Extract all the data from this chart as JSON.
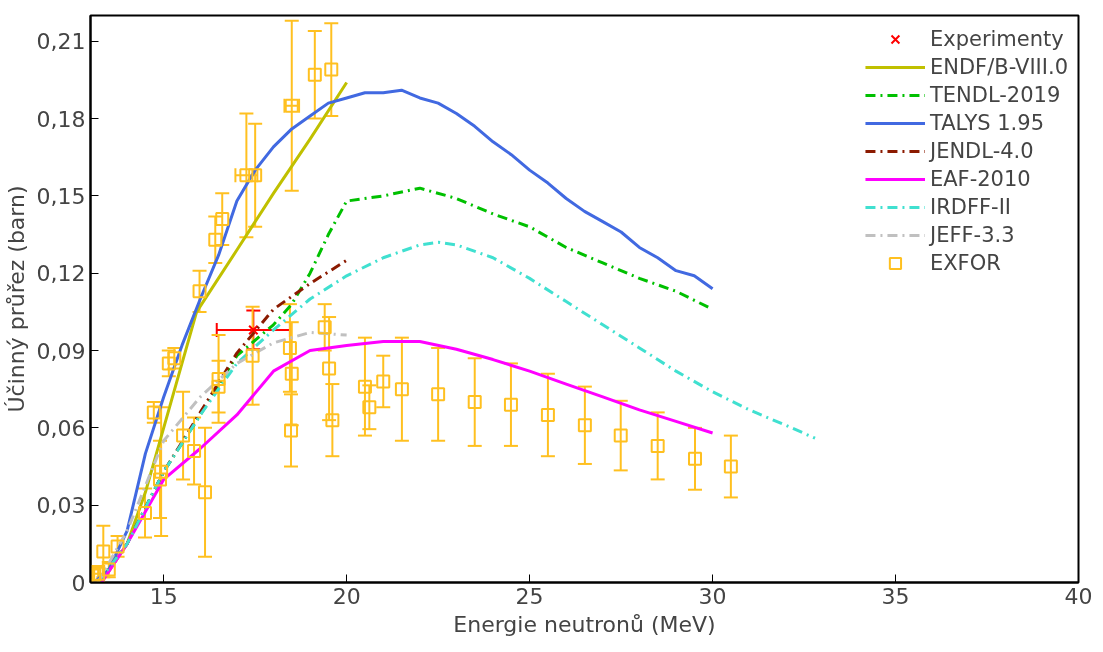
{
  "chart_data": {
    "type": "line",
    "xlabel": "Energie neutronů (MeV)",
    "ylabel": "Účinný průřez (barn)",
    "xlim": [
      13,
      40
    ],
    "xticks": [
      15,
      20,
      25,
      30,
      35,
      40
    ],
    "ylim": [
      0,
      0.22
    ],
    "yticks": [
      0,
      {
        "value": 0.03,
        "label": "0,03"
      },
      {
        "value": 0.06,
        "label": "0,06"
      },
      {
        "value": 0.09,
        "label": "0,09"
      },
      {
        "value": 0.12,
        "label": "0,12"
      },
      {
        "value": 0.15,
        "label": "0,15"
      },
      {
        "value": 0.18,
        "label": "0,18"
      },
      {
        "value": 0.21,
        "label": "0,21"
      }
    ],
    "grid": false,
    "legend": "top right",
    "series": [
      {
        "name": "Experimenty",
        "type": "scatter",
        "marker": "cross",
        "color": "#ff0000",
        "x": [
          17.45
        ],
        "values": [
          0.098
        ],
        "errors": [
          0.0075
        ],
        "xerrors": [
          1.0
        ]
      },
      {
        "name": "ENDF/B-VIII.0",
        "line_style": "solid",
        "color": "#c0c000",
        "x": [
          13.3,
          14,
          14.5,
          15,
          15.5,
          15.9,
          17,
          18,
          19,
          20
        ],
        "values": [
          0.0,
          0.015,
          0.035,
          0.06,
          0.085,
          0.105,
          0.129,
          0.151,
          0.172,
          0.194
        ]
      },
      {
        "name": "TENDL-2019",
        "line_style": "dashed",
        "color": "#00c000",
        "x": [
          13.2,
          14,
          15,
          16,
          17,
          18,
          18.5,
          19,
          19.5,
          20,
          21,
          22,
          23,
          24,
          25,
          26,
          27,
          28,
          29,
          30
        ],
        "values": [
          0.0,
          0.015,
          0.043,
          0.065,
          0.088,
          0.1,
          0.108,
          0.12,
          0.135,
          0.148,
          0.15,
          0.153,
          0.149,
          0.143,
          0.138,
          0.13,
          0.124,
          0.118,
          0.113,
          0.106
        ]
      },
      {
        "name": "TALYS 1.95",
        "line_style": "solid",
        "color": "#4169e1",
        "x": [
          13.1,
          13.5,
          14,
          14.5,
          15,
          15.5,
          16,
          16.5,
          17,
          17.5,
          18,
          18.5,
          19,
          19.5,
          20,
          20.5,
          21,
          21.5,
          22,
          22.5,
          23,
          23.5,
          24,
          24.5,
          25,
          25.5,
          26,
          26.5,
          27,
          27.5,
          28,
          28.5,
          29,
          29.5,
          30
        ],
        "values": [
          0.0,
          0.005,
          0.02,
          0.05,
          0.072,
          0.092,
          0.11,
          0.127,
          0.148,
          0.16,
          0.169,
          0.176,
          0.181,
          0.186,
          0.188,
          0.19,
          0.19,
          0.191,
          0.188,
          0.186,
          0.182,
          0.177,
          0.171,
          0.166,
          0.16,
          0.155,
          0.149,
          0.144,
          0.14,
          0.136,
          0.13,
          0.126,
          0.121,
          0.119,
          0.114
        ]
      },
      {
        "name": "JENDL-4.0",
        "line_style": "dashed",
        "color": "#8b1a00",
        "x": [
          13.2,
          14,
          15,
          16,
          17,
          18,
          19,
          20
        ],
        "values": [
          0.0,
          0.015,
          0.043,
          0.066,
          0.089,
          0.106,
          0.116,
          0.125
        ]
      },
      {
        "name": "EAF-2010",
        "line_style": "solid",
        "color": "#ff00ff",
        "x": [
          13.3,
          14,
          15,
          16,
          17,
          18,
          19,
          20,
          21,
          22,
          23,
          24,
          25,
          26,
          27,
          28,
          29,
          30
        ],
        "values": [
          0.0,
          0.015,
          0.04,
          0.052,
          0.065,
          0.082,
          0.09,
          0.092,
          0.0935,
          0.0935,
          0.0905,
          0.0865,
          0.082,
          0.077,
          0.072,
          0.067,
          0.0625,
          0.058
        ]
      },
      {
        "name": "IRDFF-II",
        "line_style": "dashed",
        "color": "#40e0d0",
        "x": [
          13.2,
          14,
          15,
          16,
          17,
          18,
          19,
          20,
          21,
          22,
          22.5,
          23,
          24,
          25,
          26,
          27,
          28,
          29,
          30,
          31,
          32,
          32.8
        ],
        "values": [
          0.0,
          0.015,
          0.043,
          0.065,
          0.085,
          0.098,
          0.11,
          0.119,
          0.126,
          0.131,
          0.132,
          0.131,
          0.126,
          0.118,
          0.109,
          0.1,
          0.091,
          0.082,
          0.074,
          0.067,
          0.061,
          0.056
        ]
      },
      {
        "name": "JEFF-3.3",
        "line_style": "dashed",
        "color": "#c0c0c0",
        "x": [
          13.2,
          14,
          15,
          16,
          17,
          18,
          19,
          20
        ],
        "values": [
          0.0,
          0.02,
          0.055,
          0.072,
          0.085,
          0.093,
          0.097,
          0.096
        ]
      },
      {
        "name": "EXFOR",
        "type": "scatter",
        "marker": "square",
        "color": "#ffc020",
        "x": [
          13.1,
          13.21,
          13.35,
          13.5,
          13.74,
          14.49,
          14.73,
          14.9,
          14.93,
          15.14,
          15.29,
          15.53,
          15.83,
          15.98,
          16.13,
          16.41,
          16.5,
          16.5,
          16.6,
          17.26,
          17.43,
          17.5,
          18.45,
          18.48,
          18.5,
          18.5,
          19.13,
          19.4,
          19.52,
          19.58,
          19.61,
          20.5,
          20.62,
          21.0,
          21.51,
          22.5,
          23.5,
          24.49,
          25.5,
          26.51,
          27.49,
          28.5,
          29.52,
          30.5
        ],
        "values": [
          0.003,
          0.0034,
          0.012,
          0.005,
          0.014,
          0.027,
          0.066,
          0.04,
          0.043,
          0.085,
          0.087,
          0.057,
          0.051,
          0.113,
          0.035,
          0.133,
          0.079,
          0.076,
          0.141,
          0.158,
          0.088,
          0.158,
          0.091,
          0.059,
          0.081,
          0.185,
          0.197,
          0.099,
          0.083,
          0.199,
          0.063,
          0.076,
          0.068,
          0.078,
          0.075,
          0.073,
          0.07,
          0.069,
          0.065,
          0.061,
          0.057,
          0.053,
          0.048,
          0.045
        ],
        "errors": [
          0.002,
          0.003,
          0.01,
          0.003,
          0.004,
          0.0095,
          0.004,
          0.015,
          0.025,
          0.005,
          0.004,
          0.017,
          0.013,
          0.008,
          0.025,
          0.009,
          0.017,
          0.01,
          0.01,
          0.024,
          0.019,
          0.02,
          0.017,
          0.014,
          0.02,
          0.033,
          0.017,
          0.009,
          0.02,
          0.018,
          0.014,
          0.019,
          0.0085,
          0.01,
          0.02,
          0.018,
          0.017,
          0.016,
          0.016,
          0.015,
          0.0135,
          0.013,
          0.012,
          0.012
        ],
        "xerrors": [
          null,
          0.15,
          null,
          null,
          null,
          null,
          null,
          null,
          null,
          null,
          null,
          null,
          null,
          null,
          null,
          null,
          null,
          null,
          null,
          0.3,
          null,
          null,
          null,
          null,
          null,
          0.2,
          null,
          null,
          null,
          null,
          null,
          null,
          null,
          null,
          null,
          null,
          null,
          null,
          null,
          null,
          null,
          null,
          null,
          null
        ]
      }
    ]
  }
}
